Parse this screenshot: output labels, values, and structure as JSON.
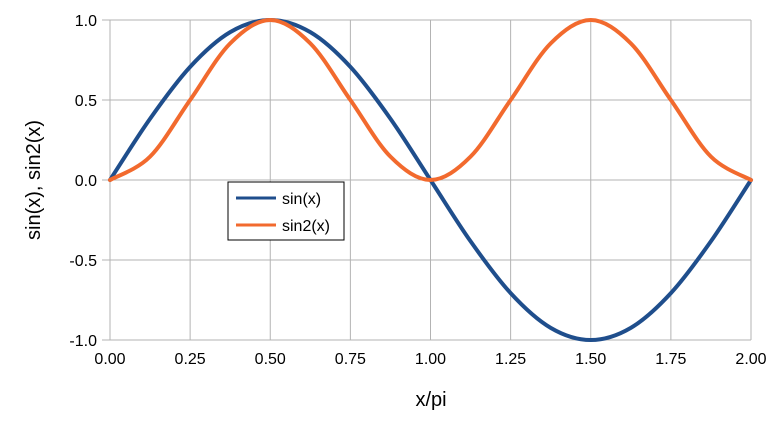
{
  "chart_data": {
    "type": "line",
    "title": "",
    "xlabel": "x/pi",
    "ylabel": "sin(x),  sin2(x)",
    "xlim": [
      0,
      2
    ],
    "ylim": [
      -1,
      1
    ],
    "x_ticks": [
      0,
      0.25,
      0.5,
      0.75,
      1,
      1.25,
      1.5,
      1.75,
      2
    ],
    "x_tick_labels": [
      "0.00",
      "0.25",
      "0.50",
      "0.75",
      "1.00",
      "1.25",
      "1.50",
      "1.75",
      "2.00"
    ],
    "y_ticks": [
      1,
      0.5,
      0,
      -0.5,
      -1
    ],
    "y_tick_labels": [
      "1.0",
      "0.5",
      "0.0",
      "-0.5",
      "-1.0"
    ],
    "grid": true,
    "legend_position": "center-left",
    "x": [
      0,
      0.125,
      0.25,
      0.375,
      0.5,
      0.625,
      0.75,
      0.875,
      1,
      1.125,
      1.25,
      1.375,
      1.5,
      1.625,
      1.75,
      1.875,
      2
    ],
    "series": [
      {
        "name": "sin(x)",
        "color": "#1f4e8c",
        "values": [
          0,
          0.383,
          0.707,
          0.924,
          1,
          0.924,
          0.707,
          0.383,
          0,
          -0.383,
          -0.707,
          -0.924,
          -1,
          -0.924,
          -0.707,
          -0.383,
          0
        ]
      },
      {
        "name": "sin2(x)",
        "color": "#f26a2e",
        "values": [
          0,
          0.146,
          0.5,
          0.854,
          1,
          0.854,
          0.5,
          0.146,
          0,
          0.146,
          0.5,
          0.854,
          1,
          0.854,
          0.5,
          0.146,
          0
        ]
      }
    ]
  }
}
